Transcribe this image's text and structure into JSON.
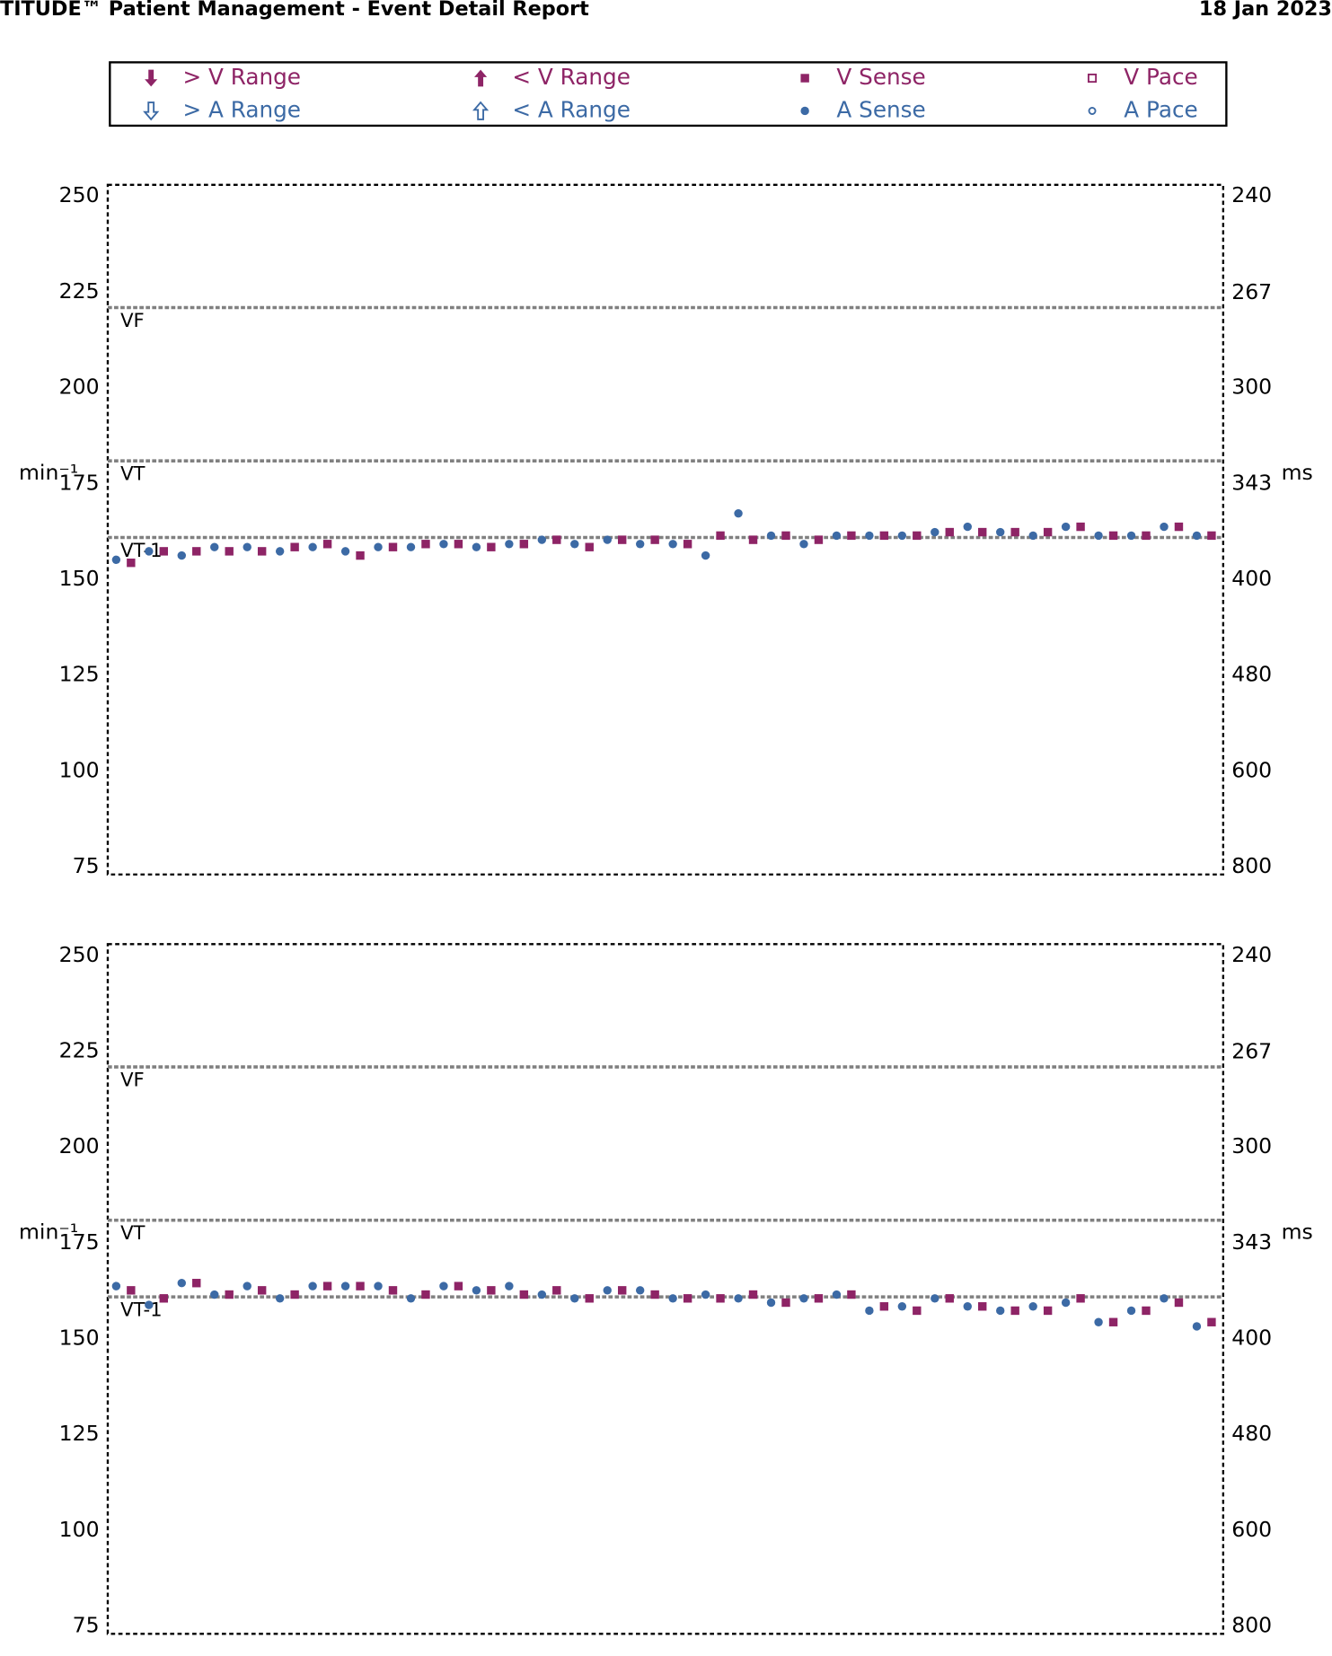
{
  "header": {
    "title": "TITUDE™ Patient Management - Event Detail Report",
    "date": "18 Jan 2023"
  },
  "legend": [
    {
      "label": "> V Range",
      "color": "#8e2466",
      "marker": "arrow-up"
    },
    {
      "label": "< V Range",
      "color": "#8e2466",
      "marker": "arrow-down"
    },
    {
      "label": "V Sense",
      "color": "#8e2466",
      "marker": "square"
    },
    {
      "label": "V Pace",
      "color": "#8e2466",
      "marker": "square-open"
    },
    {
      "label": "> A Range",
      "color": "#3c6aa5",
      "marker": "arrow-up-open"
    },
    {
      "label": "< A Range",
      "color": "#3c6aa5",
      "marker": "arrow-down-open"
    },
    {
      "label": "A Sense",
      "color": "#3c6aa5",
      "marker": "circle"
    },
    {
      "label": "A Pace",
      "color": "#3c6aa5",
      "marker": "circle-open"
    }
  ],
  "chart_data": [
    {
      "type": "scatter",
      "ylabel": "min⁻¹",
      "y2label": "ms",
      "ylim": [
        75,
        250
      ],
      "yticks": [
        250,
        225,
        200,
        175,
        150,
        125,
        100,
        75
      ],
      "y2lim": [
        240,
        800
      ],
      "y2ticks": [
        240,
        267,
        300,
        343,
        400,
        480,
        600,
        800
      ],
      "y2_scale": "reciprocal",
      "thresholds": [
        {
          "label": "VF",
          "value": 221
        },
        {
          "label": "VT",
          "value": 181
        },
        {
          "label": "VT-1",
          "value": 161
        }
      ],
      "categories": [
        null,
        null,
        null,
        null,
        null,
        null,
        null,
        null,
        null,
        null,
        null,
        null,
        null,
        null,
        null,
        null,
        null,
        null,
        null,
        null,
        null,
        null,
        null,
        null,
        null,
        null,
        null,
        null,
        null,
        null,
        null,
        null,
        null,
        null
      ],
      "series": [
        {
          "name": "A Sense",
          "values": [
            155.2,
            157.4,
            156.3,
            158.5,
            158.5,
            157.4,
            158.5,
            157.4,
            158.5,
            158.5,
            159.3,
            158.5,
            159.3,
            160.4,
            159.3,
            160.4,
            159.3,
            159.3,
            156.3,
            167.3,
            161.5,
            159.3,
            161.5,
            161.5,
            161.5,
            162.4,
            163.8,
            162.4,
            161.5,
            163.8,
            161.5,
            161.5,
            163.8,
            161.5
          ]
        },
        {
          "name": "V Sense",
          "values": [
            154.4,
            157.4,
            157.4,
            157.4,
            157.4,
            158.5,
            159.3,
            156.3,
            158.5,
            159.3,
            159.3,
            158.5,
            159.3,
            160.4,
            158.5,
            160.4,
            160.4,
            159.3,
            161.5,
            160.4,
            161.5,
            160.4,
            161.5,
            161.5,
            161.5,
            162.4,
            162.4,
            162.4,
            162.4,
            163.8,
            161.5,
            161.5,
            163.8,
            161.5
          ]
        }
      ]
    },
    {
      "type": "scatter",
      "ylabel": "min⁻¹",
      "y2label": "ms",
      "ylim": [
        75,
        250
      ],
      "yticks": [
        250,
        225,
        200,
        175,
        150,
        125,
        100,
        75
      ],
      "y2lim": [
        240,
        800
      ],
      "y2ticks": [
        240,
        267,
        300,
        343,
        400,
        480,
        600,
        800
      ],
      "y2_scale": "reciprocal",
      "thresholds": [
        {
          "label": "VF",
          "value": 221
        },
        {
          "label": "VT",
          "value": 181
        },
        {
          "label": "VT-1",
          "value": 161
        }
      ],
      "categories": [
        null,
        null,
        null,
        null,
        null,
        null,
        null,
        null,
        null,
        null,
        null,
        null,
        null,
        null,
        null,
        null,
        null,
        null,
        null,
        null,
        null,
        null,
        null,
        null,
        null,
        null,
        null,
        null,
        null,
        null,
        null,
        null,
        null,
        null
      ],
      "series": [
        {
          "name": "A Sense",
          "values": [
            163.8,
            158.9,
            164.6,
            161.6,
            163.8,
            160.6,
            163.8,
            163.8,
            163.8,
            160.6,
            163.8,
            162.7,
            163.8,
            161.6,
            160.6,
            162.7,
            162.7,
            160.6,
            161.6,
            160.6,
            159.5,
            160.6,
            161.6,
            157.4,
            158.5,
            160.6,
            158.5,
            157.4,
            158.5,
            159.5,
            154.4,
            157.4,
            160.6,
            153.3
          ]
        },
        {
          "name": "V Sense",
          "values": [
            162.7,
            160.6,
            164.6,
            161.6,
            162.7,
            161.6,
            163.8,
            163.8,
            162.7,
            161.6,
            163.8,
            162.7,
            161.6,
            162.7,
            160.6,
            162.7,
            161.6,
            160.6,
            160.6,
            161.6,
            159.5,
            160.6,
            161.6,
            158.5,
            157.4,
            160.6,
            158.5,
            157.4,
            157.4,
            160.6,
            154.4,
            157.4,
            159.5,
            154.4
          ]
        }
      ]
    }
  ]
}
